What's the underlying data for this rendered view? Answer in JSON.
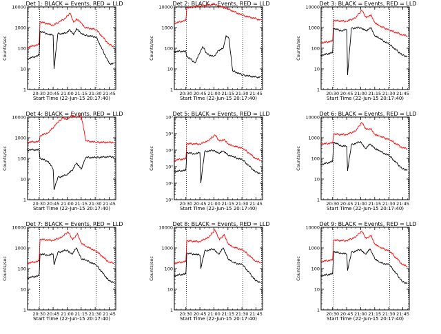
{
  "figure": {
    "common": {
      "title_suffix": "BLACK = Events, RED = LLD",
      "ylabel": "Counts/sec",
      "xlabel": "Start Time (22-Jun-15 20:17:40)",
      "x_ticks": [
        "20:30",
        "20:45",
        "21:00",
        "21:15",
        "21:30",
        "21:45"
      ],
      "y_ticks_decimal": [
        "1",
        "10",
        "100",
        "1000",
        "10000"
      ],
      "y_ticks_exp": [
        "10⁰",
        "10¹",
        "10²",
        "10³",
        "10⁴",
        "10⁵"
      ],
      "line_colors": {
        "events": "#000000",
        "lld": "#ff0000"
      }
    }
  },
  "chart_data": [
    {
      "type": "line",
      "panel": "Det 1",
      "title": "Det 1: BLACK = Events, RED = LLD",
      "xlabel": "Start Time (22-Jun-15 20:17:40)",
      "ylabel": "Counts/sec",
      "yscale": "log",
      "ylim": [
        1,
        10000
      ],
      "xlim": [
        "20:17:40",
        "21:52"
      ],
      "series": [
        {
          "name": "LLD",
          "color": "#ff0000",
          "x": [
            "20:17",
            "20:30",
            "20:31",
            "20:45",
            "20:52",
            "20:58",
            "21:03",
            "21:07",
            "21:10",
            "21:15",
            "21:19",
            "21:31",
            "21:45",
            "21:50"
          ],
          "y": [
            110,
            150,
            1900,
            1300,
            1900,
            2800,
            5000,
            1800,
            2700,
            1700,
            1000,
            800,
            150,
            120
          ]
        },
        {
          "name": "Events",
          "color": "#000000",
          "x": [
            "20:17",
            "20:30",
            "20:31",
            "20:40",
            "20:45",
            "20:46",
            "20:50",
            "20:58",
            "21:03",
            "21:07",
            "21:10",
            "21:15",
            "21:19",
            "21:31",
            "21:45",
            "21:50"
          ],
          "y": [
            30,
            45,
            650,
            480,
            420,
            10,
            500,
            520,
            800,
            450,
            900,
            500,
            420,
            350,
            18,
            18
          ]
        }
      ]
    },
    {
      "type": "line",
      "panel": "Det 2",
      "title": "Det 2: BLACK = Events, RED = LLD",
      "xlabel": "Start Time (22-Jun-15 20:17:40)",
      "ylabel": "Counts/sec",
      "yscale": "log",
      "ylim": [
        1,
        10000
      ],
      "xlim": [
        "20:17:40",
        "21:52"
      ],
      "series": [
        {
          "name": "LLD",
          "color": "#ff0000",
          "x": [
            "20:17",
            "20:30",
            "20:31",
            "20:45",
            "21:00",
            "21:15",
            "21:31",
            "21:45",
            "21:50"
          ],
          "y": [
            1600,
            2200,
            9000,
            11000,
            13000,
            8000,
            3800,
            2700,
            2300
          ]
        },
        {
          "name": "Events",
          "color": "#000000",
          "x": [
            "20:17",
            "20:30",
            "20:31",
            "20:40",
            "20:45",
            "20:48",
            "20:53",
            "21:00",
            "21:05",
            "21:10",
            "21:13",
            "21:16",
            "21:20",
            "21:31",
            "21:45",
            "21:50"
          ],
          "y": [
            70,
            70,
            40,
            20,
            60,
            120,
            50,
            40,
            80,
            100,
            400,
            300,
            8,
            5,
            4,
            4
          ]
        }
      ]
    },
    {
      "type": "line",
      "panel": "Det 3",
      "title": "Det 3: BLACK = Events, RED = LLD",
      "xlabel": "Start Time (22-Jun-15 20:17:40)",
      "ylabel": "Counts/sec",
      "yscale": "log",
      "ylim": [
        1,
        10000
      ],
      "xlim": [
        "20:17:40",
        "21:52"
      ],
      "series": [
        {
          "name": "LLD",
          "color": "#ff0000",
          "x": [
            "20:17",
            "20:30",
            "20:31",
            "20:45",
            "20:55",
            "21:01",
            "21:06",
            "21:11",
            "21:15",
            "21:20",
            "21:31",
            "21:45",
            "21:50"
          ],
          "y": [
            180,
            220,
            2200,
            2000,
            3000,
            7000,
            3000,
            4200,
            1800,
            1200,
            750,
            430,
            400
          ]
        },
        {
          "name": "Events",
          "color": "#000000",
          "x": [
            "20:17",
            "20:30",
            "20:31",
            "20:40",
            "20:45",
            "20:46",
            "20:50",
            "21:00",
            "21:06",
            "21:11",
            "21:15",
            "21:20",
            "21:31",
            "21:45",
            "21:50"
          ],
          "y": [
            45,
            60,
            900,
            700,
            800,
            5,
            900,
            1000,
            700,
            1000,
            400,
            300,
            150,
            45,
            40
          ]
        }
      ]
    },
    {
      "type": "line",
      "panel": "Det 4",
      "title": "Det 4: BLACK = Events, RED = LLD",
      "xlabel": "Start Time (22-Jun-15 20:17:40)",
      "ylabel": "Counts/sec",
      "yscale": "log",
      "ylim": [
        1,
        10000
      ],
      "xlim": [
        "20:17:40",
        "21:52"
      ],
      "series": [
        {
          "name": "LLD",
          "color": "#ff0000",
          "x": [
            "20:17",
            "20:30",
            "20:31",
            "20:40",
            "20:46",
            "20:50",
            "20:55",
            "21:00",
            "21:05",
            "21:10",
            "21:15",
            "21:20",
            "21:31",
            "21:45",
            "21:50"
          ],
          "y": [
            600,
            650,
            1200,
            1800,
            3500,
            5500,
            9000,
            8000,
            12000,
            10000,
            12000,
            700,
            600,
            600,
            600
          ]
        },
        {
          "name": "Events",
          "color": "#000000",
          "x": [
            "20:17",
            "20:30",
            "20:31",
            "20:40",
            "20:45",
            "20:46",
            "20:50",
            "20:58",
            "21:05",
            "21:10",
            "21:15",
            "21:20",
            "21:31",
            "21:45",
            "21:50"
          ],
          "y": [
            260,
            260,
            100,
            70,
            30,
            3,
            12,
            15,
            25,
            60,
            30,
            110,
            110,
            120,
            120
          ]
        }
      ]
    },
    {
      "type": "line",
      "panel": "Det 5",
      "title": "Det 5: BLACK = Events, RED = LLD",
      "xlabel": "Start Time (22-Jun-15 20:17:40)",
      "ylabel": "Counts/sec",
      "yscale": "log",
      "ylim": [
        1,
        100000
      ],
      "xlim": [
        "20:17:40",
        "21:52"
      ],
      "series": [
        {
          "name": "LLD",
          "color": "#ff0000",
          "x": [
            "20:17",
            "20:30",
            "20:31",
            "20:45",
            "20:55",
            "21:01",
            "21:06",
            "21:11",
            "21:15",
            "21:20",
            "21:31",
            "21:45",
            "21:50"
          ],
          "y": [
            250,
            300,
            2500,
            2300,
            4000,
            8500,
            3500,
            4500,
            2500,
            1800,
            1300,
            300,
            250
          ]
        },
        {
          "name": "Events",
          "color": "#000000",
          "x": [
            "20:17",
            "20:30",
            "20:31",
            "20:40",
            "20:45",
            "20:46",
            "20:50",
            "21:00",
            "21:05",
            "21:10",
            "21:15",
            "21:20",
            "21:31",
            "21:45",
            "21:50"
          ],
          "y": [
            50,
            60,
            700,
            600,
            700,
            10,
            800,
            1000,
            650,
            900,
            500,
            400,
            250,
            45,
            40
          ]
        }
      ]
    },
    {
      "type": "line",
      "panel": "Det 6",
      "title": "Det 6: BLACK = Events, RED = LLD",
      "xlabel": "Start Time (22-Jun-15 20:17:40)",
      "ylabel": "Counts/sec",
      "yscale": "log",
      "ylim": [
        1,
        10000
      ],
      "xlim": [
        "20:17:40",
        "21:52"
      ],
      "series": [
        {
          "name": "LLD",
          "color": "#ff0000",
          "x": [
            "20:17",
            "20:30",
            "20:31",
            "20:45",
            "20:55",
            "21:01",
            "21:06",
            "21:11",
            "21:15",
            "21:20",
            "21:31",
            "21:45",
            "21:50"
          ],
          "y": [
            500,
            550,
            1500,
            1400,
            2200,
            5500,
            2500,
            2800,
            1500,
            1200,
            800,
            320,
            300
          ]
        },
        {
          "name": "Events",
          "color": "#000000",
          "x": [
            "20:17",
            "20:30",
            "20:31",
            "20:40",
            "20:45",
            "20:46",
            "20:50",
            "21:00",
            "21:05",
            "21:10",
            "21:15",
            "21:20",
            "21:31",
            "21:45",
            "21:50"
          ],
          "y": [
            50,
            70,
            600,
            400,
            380,
            25,
            450,
            650,
            300,
            500,
            300,
            230,
            130,
            30,
            28
          ]
        }
      ]
    },
    {
      "type": "line",
      "panel": "Det 7",
      "title": "Det 7: BLACK = Events, RED = LLD",
      "xlabel": "Start Time (22-Jun-15 20:17:40)",
      "ylabel": "Counts/sec",
      "yscale": "log",
      "ylim": [
        1,
        10000
      ],
      "xlim": [
        "20:17:40",
        "21:52"
      ],
      "series": [
        {
          "name": "LLD",
          "color": "#ff0000",
          "x": [
            "20:17",
            "20:30",
            "20:31",
            "20:45",
            "20:55",
            "21:01",
            "21:06",
            "21:11",
            "21:15",
            "21:20",
            "21:31",
            "21:45",
            "21:50"
          ],
          "y": [
            180,
            230,
            2600,
            2300,
            3500,
            6000,
            2500,
            5000,
            1800,
            1200,
            700,
            200,
            190
          ]
        },
        {
          "name": "Events",
          "color": "#000000",
          "x": [
            "20:17",
            "20:30",
            "20:31",
            "20:40",
            "20:45",
            "20:46",
            "20:50",
            "21:00",
            "21:05",
            "21:10",
            "21:15",
            "21:20",
            "21:31",
            "21:45",
            "21:50"
          ],
          "y": [
            35,
            45,
            500,
            450,
            500,
            150,
            600,
            800,
            500,
            1000,
            300,
            250,
            150,
            25,
            22
          ]
        }
      ]
    },
    {
      "type": "line",
      "panel": "Det 8",
      "title": "Det 8: BLACK = Events, RED = LLD",
      "xlabel": "Start Time (22-Jun-15 20:17:40)",
      "ylabel": "Counts/sec",
      "yscale": "log",
      "ylim": [
        1,
        10000
      ],
      "xlim": [
        "20:17:40",
        "21:52"
      ],
      "series": [
        {
          "name": "LLD",
          "color": "#ff0000",
          "x": [
            "20:17",
            "20:30",
            "20:31",
            "20:45",
            "20:55",
            "21:01",
            "21:06",
            "21:11",
            "21:15",
            "21:20",
            "21:31",
            "21:45",
            "21:50"
          ],
          "y": [
            180,
            220,
            2200,
            2000,
            3500,
            7500,
            2500,
            4500,
            1700,
            1100,
            800,
            220,
            200
          ]
        },
        {
          "name": "Events",
          "color": "#000000",
          "x": [
            "20:17",
            "20:30",
            "20:31",
            "20:40",
            "20:45",
            "20:46",
            "20:50",
            "21:00",
            "21:05",
            "21:10",
            "21:15",
            "21:20",
            "21:31",
            "21:45",
            "21:50"
          ],
          "y": [
            45,
            55,
            550,
            500,
            450,
            100,
            700,
            900,
            500,
            1000,
            300,
            200,
            150,
            25,
            22
          ]
        }
      ]
    },
    {
      "type": "line",
      "panel": "Det 9",
      "title": "Det 9: BLACK = Events, RED = LLD",
      "xlabel": "Start Time (22-Jun-15 20:17:40)",
      "ylabel": "Counts/sec",
      "yscale": "log",
      "ylim": [
        1,
        10000
      ],
      "xlim": [
        "20:17:40",
        "21:52"
      ],
      "series": [
        {
          "name": "LLD",
          "color": "#ff0000",
          "x": [
            "20:17",
            "20:30",
            "20:31",
            "20:45",
            "20:55",
            "21:01",
            "21:06",
            "21:11",
            "21:15",
            "21:20",
            "21:31",
            "21:45",
            "21:50"
          ],
          "y": [
            220,
            260,
            2400,
            2200,
            3500,
            6500,
            2800,
            4200,
            1600,
            1100,
            700,
            150,
            130
          ]
        },
        {
          "name": "Events",
          "color": "#000000",
          "x": [
            "20:17",
            "20:30",
            "20:31",
            "20:40",
            "20:45",
            "20:46",
            "20:50",
            "21:00",
            "21:05",
            "21:10",
            "21:15",
            "21:20",
            "21:31",
            "21:45",
            "21:50"
          ],
          "y": [
            45,
            55,
            650,
            550,
            500,
            80,
            600,
            850,
            500,
            900,
            300,
            200,
            150,
            22,
            20
          ]
        }
      ]
    }
  ]
}
